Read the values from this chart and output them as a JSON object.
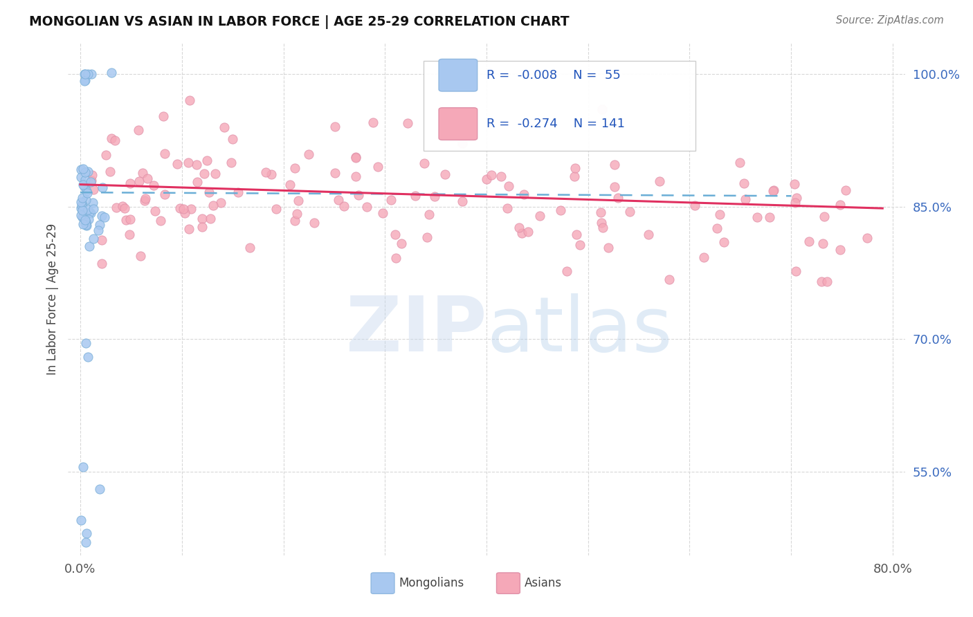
{
  "title": "MONGOLIAN VS ASIAN IN LABOR FORCE | AGE 25-29 CORRELATION CHART",
  "source_text": "Source: ZipAtlas.com",
  "ylabel": "In Labor Force | Age 25-29",
  "xlim": [
    -0.012,
    0.812
  ],
  "ylim": [
    0.455,
    1.035
  ],
  "yticks": [
    0.55,
    0.7,
    0.85,
    1.0
  ],
  "ytick_labels": [
    "55.0%",
    "70.0%",
    "85.0%",
    "100.0%"
  ],
  "xticks": [
    0.0,
    0.1,
    0.2,
    0.3,
    0.4,
    0.5,
    0.6,
    0.7,
    0.8
  ],
  "xtick_labels": [
    "0.0%",
    "",
    "",
    "",
    "",
    "",
    "",
    "",
    "80.0%"
  ],
  "mongolian_R": "-0.008",
  "mongolian_N": "55",
  "asian_R": "-0.274",
  "asian_N": "141",
  "mongolian_color": "#a8c8f0",
  "asian_color": "#f5a8b8",
  "mongolian_line_color": "#6aaed6",
  "asian_line_color": "#e03060",
  "legend_label_mongolian": "Mongolians",
  "legend_label_asian": "Asians"
}
